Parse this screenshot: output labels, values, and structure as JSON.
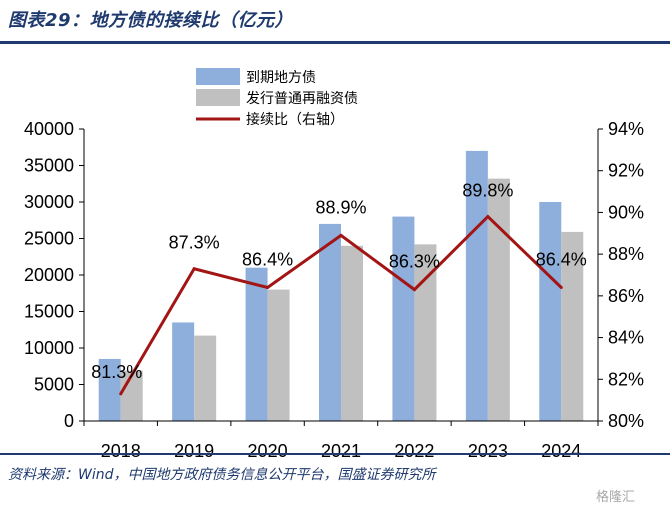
{
  "title": "图表29：地方债的接续比（亿元）",
  "source": "资料来源：Wind，中国地方政府债务信息公开平台，国盛证券研究所",
  "watermark": "格隆汇",
  "colors": {
    "maturing": "#8eaedb",
    "refinancing": "#c0c0c0",
    "ratio": "#a31515",
    "brand": "#1f3a6e"
  },
  "chart_data": {
    "type": "bar",
    "categories": [
      "2018",
      "2019",
      "2020",
      "2021",
      "2022",
      "2023",
      "2024"
    ],
    "series": [
      {
        "name": "到期地方债",
        "kind": "bar",
        "axis": "left",
        "values": [
          8500,
          13500,
          21000,
          27000,
          28000,
          37000,
          30000
        ]
      },
      {
        "name": "发行普通再融资债",
        "kind": "bar",
        "axis": "left",
        "values": [
          6900,
          11700,
          18000,
          24000,
          24200,
          33200,
          25900
        ]
      },
      {
        "name": "接续比（右轴）",
        "kind": "line",
        "axis": "right",
        "values": [
          81.3,
          87.3,
          86.4,
          88.9,
          86.3,
          89.8,
          86.4
        ],
        "labels": [
          "81.3%",
          "87.3%",
          "86.4%",
          "88.9%",
          "86.3%",
          "89.8%",
          "86.4%"
        ]
      }
    ],
    "y_left": {
      "min": 0,
      "max": 40000,
      "step": 5000,
      "ticks": [
        "0",
        "5000",
        "10000",
        "15000",
        "20000",
        "25000",
        "30000",
        "35000",
        "40000"
      ]
    },
    "y_right": {
      "min": 80,
      "max": 94,
      "step": 2,
      "ticks": [
        "80%",
        "82%",
        "84%",
        "86%",
        "88%",
        "90%",
        "92%",
        "94%"
      ]
    },
    "legend_position": "top-center",
    "grid": false
  }
}
